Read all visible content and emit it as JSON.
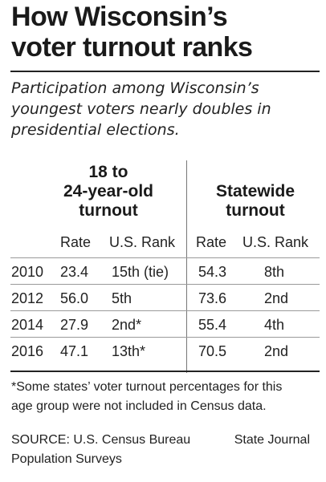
{
  "title": {
    "lines": [
      "How Wisconsin’s",
      "voter turnout ranks"
    ]
  },
  "subtitle": {
    "lines": [
      "Participation among Wisconsin’s",
      "youngest voters nearly doubles in",
      "presidential elections."
    ]
  },
  "table": {
    "group_headers": {
      "youth": [
        "18 to",
        "24-year-old",
        "turnout"
      ],
      "statewide": [
        "Statewide",
        "turnout"
      ]
    },
    "column_headers": {
      "youth_rate": "Rate",
      "youth_rank": "U.S. Rank",
      "state_rate": "Rate",
      "state_rank": "U.S. Rank"
    },
    "rows": [
      {
        "year": "2010",
        "youth_rate": "23.4",
        "youth_rank": "15th (tie)",
        "state_rate": "54.3",
        "state_rank": "8th"
      },
      {
        "year": "2012",
        "youth_rate": "56.0",
        "youth_rank": "5th",
        "state_rate": "73.6",
        "state_rank": "2nd"
      },
      {
        "year": "2014",
        "youth_rate": "27.9",
        "youth_rank": "2nd*",
        "state_rate": "55.4",
        "state_rank": "4th"
      },
      {
        "year": "2016",
        "youth_rate": "47.1",
        "youth_rank": "13th*",
        "state_rate": "70.5",
        "state_rank": "2nd"
      }
    ]
  },
  "footnote": {
    "lines": [
      "*Some states’ voter turnout percentages for this",
      "age group were not included in Census data."
    ]
  },
  "source": {
    "lines": [
      "SOURCE: U.S. Census Bureau",
      "Population Surveys"
    ]
  },
  "credit": "State Journal"
}
